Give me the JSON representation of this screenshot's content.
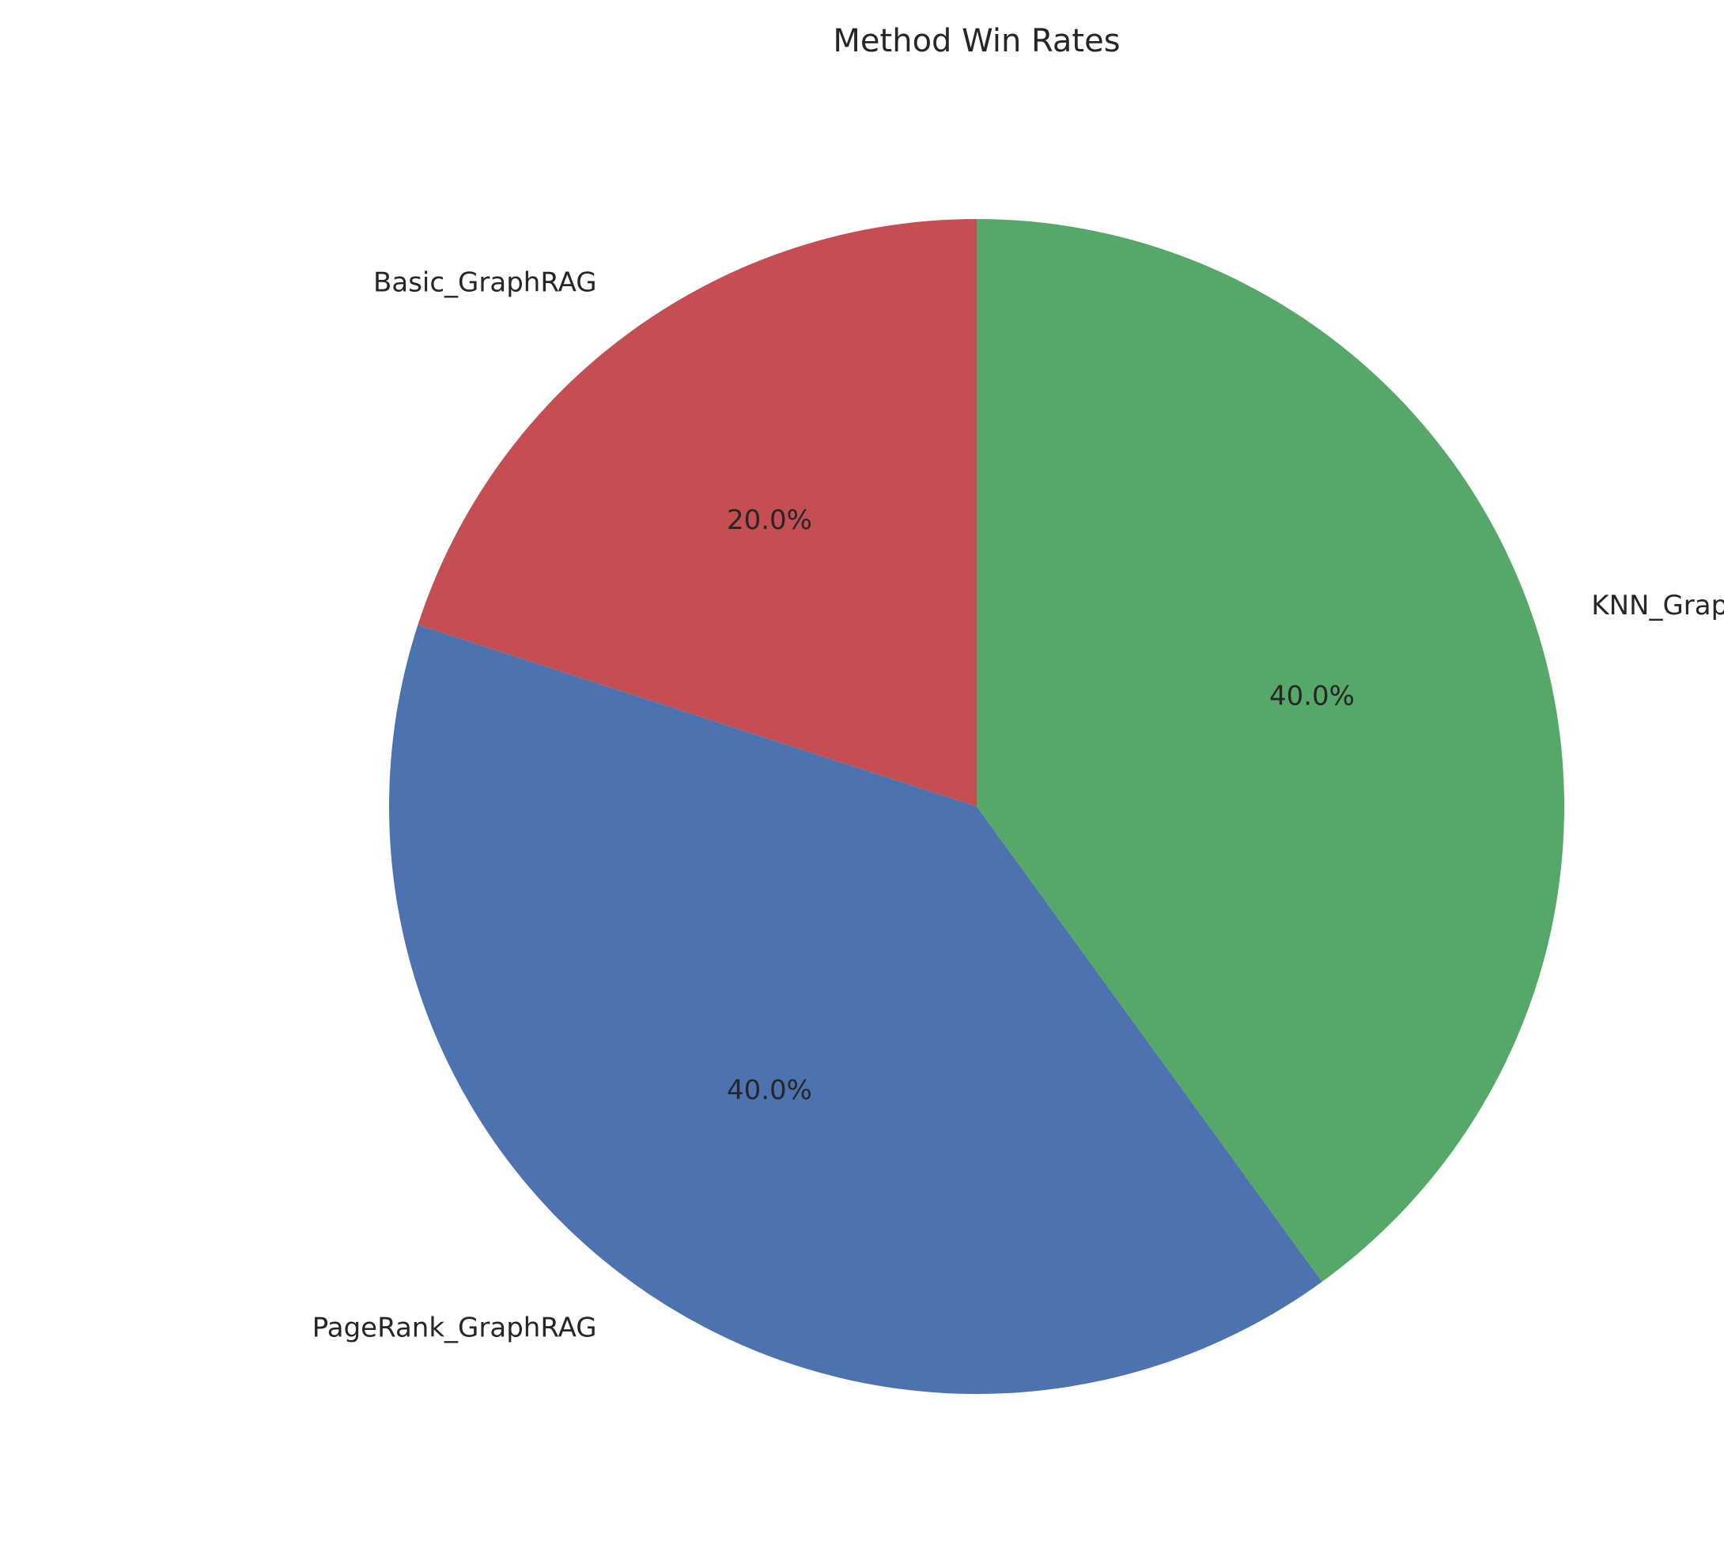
{
  "chart_data": {
    "type": "pie",
    "title": "Method Win Rates",
    "start_angle_deg": 90,
    "direction": "counterclockwise",
    "slices": [
      {
        "label": "Basic_GraphRAG",
        "value": 20.0,
        "pct_text": "20.0%",
        "color": "#C44E52"
      },
      {
        "label": "PageRank_GraphRAG",
        "value": 40.0,
        "pct_text": "40.0%",
        "color": "#4C72B0"
      },
      {
        "label": "KNN_GraphRAG",
        "value": 40.0,
        "pct_text": "40.0%",
        "color": "#55A868"
      }
    ]
  }
}
